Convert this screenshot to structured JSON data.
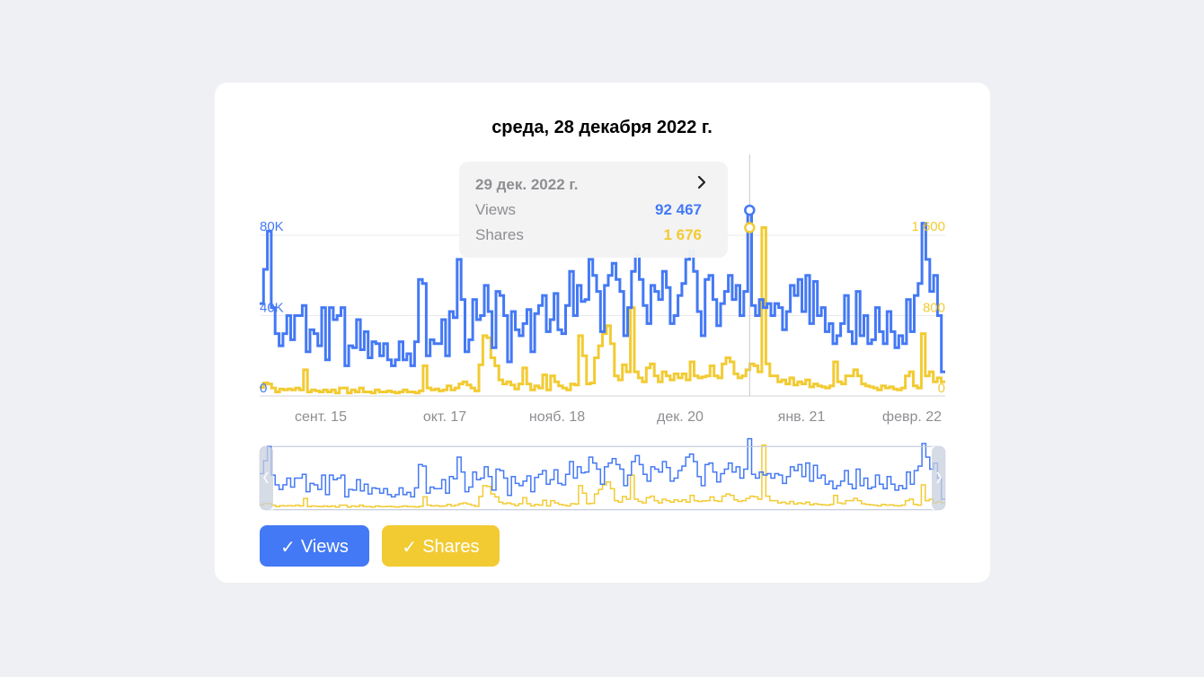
{
  "header": {
    "title": "среда, 28 декабря 2022 г."
  },
  "tooltip": {
    "date": "29 дек. 2022 г.",
    "rows": [
      {
        "label": "Views",
        "value": "92 467",
        "color": "#4479f5"
      },
      {
        "label": "Shares",
        "value": "1 676",
        "color": "#f2cb33"
      }
    ]
  },
  "legend_buttons": [
    {
      "check": "✓",
      "label": "Views",
      "color": "#4479f5",
      "checked": true
    },
    {
      "check": "✓",
      "label": "Shares",
      "color": "#f2cb33",
      "checked": true
    }
  ],
  "chart_data": {
    "type": "line",
    "step": true,
    "x_axis": {
      "tick_labels": [
        "сент. 15",
        "окт. 17",
        "нояб. 18",
        "дек. 20",
        "янв. 21",
        "февр. 22"
      ]
    },
    "y_axes": {
      "left": {
        "series": "Views",
        "ticks": [
          "0",
          "40K",
          "80K"
        ],
        "ylim": [
          0,
          80000
        ],
        "color": "#4479f5"
      },
      "right": {
        "series": "Shares",
        "ticks": [
          "0",
          "800",
          "1 600"
        ],
        "ylim": [
          0,
          1600
        ],
        "color": "#f2cb33"
      }
    },
    "grid": true,
    "highlight_index": 126,
    "series": [
      {
        "name": "Views",
        "color": "#4479f5",
        "values": [
          46000,
          63000,
          82000,
          44000,
          31000,
          25000,
          31000,
          40000,
          28000,
          40000,
          40000,
          45000,
          22000,
          33000,
          31000,
          25000,
          44000,
          18000,
          44000,
          38000,
          40000,
          44000,
          15000,
          25000,
          24000,
          38000,
          23000,
          32000,
          19000,
          27000,
          26000,
          20000,
          26000,
          18000,
          15000,
          18000,
          27000,
          18000,
          21000,
          15000,
          27000,
          58000,
          56000,
          20000,
          28000,
          26000,
          26000,
          38000,
          20000,
          42000,
          39000,
          68000,
          48000,
          22000,
          28000,
          48000,
          38000,
          40000,
          55000,
          42000,
          24000,
          52000,
          50000,
          40000,
          17000,
          42000,
          33000,
          30000,
          36000,
          43000,
          22000,
          41000,
          45000,
          50000,
          32000,
          38000,
          51000,
          33000,
          31000,
          45000,
          62000,
          40000,
          55000,
          47000,
          48000,
          68000,
          60000,
          52000,
          32000,
          55000,
          60000,
          66000,
          58000,
          52000,
          30000,
          44000,
          62000,
          70000,
          58000,
          45000,
          36000,
          55000,
          52000,
          48000,
          62000,
          54000,
          36000,
          40000,
          50000,
          56000,
          68000,
          72000,
          62000,
          42000,
          30000,
          58000,
          60000,
          48000,
          35000,
          46000,
          52000,
          60000,
          48000,
          55000,
          40000,
          52000,
          92467,
          45000,
          40000,
          48000,
          44000,
          46000,
          40000,
          46000,
          44000,
          33000,
          42000,
          55000,
          50000,
          58000,
          42000,
          60000,
          36000,
          57000,
          40000,
          44000,
          32000,
          36000,
          26000,
          30000,
          36000,
          50000,
          32000,
          26000,
          52000,
          30000,
          40000,
          26000,
          28000,
          44000,
          32000,
          26000,
          42000,
          32000,
          24000,
          30000,
          26000,
          48000,
          32000,
          50000,
          56000,
          86000,
          68000,
          52000,
          60000,
          40000,
          12000
        ]
      },
      {
        "name": "Shares",
        "color": "#f2cb33",
        "values": [
          85,
          130,
          120,
          80,
          40,
          70,
          60,
          70,
          60,
          80,
          60,
          260,
          40,
          60,
          50,
          40,
          60,
          40,
          60,
          30,
          80,
          80,
          30,
          60,
          40,
          80,
          40,
          40,
          30,
          60,
          40,
          40,
          50,
          40,
          30,
          40,
          60,
          40,
          40,
          30,
          50,
          300,
          80,
          60,
          70,
          50,
          60,
          100,
          60,
          80,
          120,
          140,
          110,
          80,
          50,
          310,
          600,
          580,
          380,
          300,
          160,
          120,
          140,
          110,
          70,
          120,
          280,
          120,
          60,
          100,
          80,
          210,
          60,
          200,
          140,
          100,
          80,
          60,
          120,
          110,
          600,
          400,
          120,
          130,
          380,
          500,
          620,
          700,
          520,
          200,
          160,
          310,
          240,
          880,
          240,
          180,
          140,
          280,
          320,
          200,
          140,
          240,
          200,
          160,
          220,
          180,
          220,
          160,
          340,
          200,
          180,
          190,
          200,
          300,
          200,
          180,
          320,
          380,
          340,
          220,
          180,
          200,
          260,
          320,
          300,
          240,
          1676,
          320,
          200,
          200,
          140,
          160,
          120,
          180,
          110,
          140,
          120,
          160,
          90,
          120,
          100,
          90,
          80,
          100,
          340,
          140,
          120,
          200,
          200,
          260,
          200,
          120,
          100,
          90,
          80,
          60,
          100,
          80,
          90,
          70,
          60,
          80,
          200,
          240,
          100,
          80,
          620,
          200,
          240,
          140,
          180,
          140
        ]
      }
    ]
  }
}
